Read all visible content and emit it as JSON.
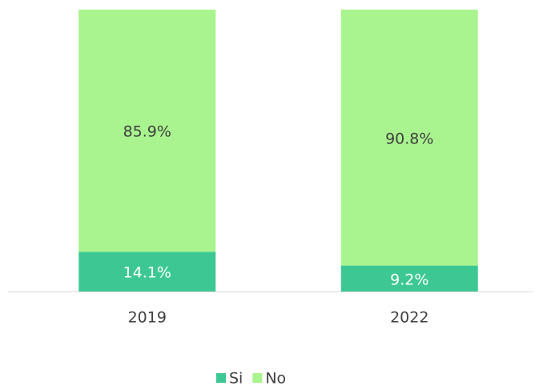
{
  "chart_data": {
    "type": "stacked_bar",
    "categories": [
      "2019",
      "2022"
    ],
    "series": [
      {
        "name": "Si",
        "color": "#3dc893",
        "values": [
          14.1,
          9.2
        ],
        "value_labels": [
          "14.1%",
          "9.2%"
        ],
        "label_color": "#ffffff"
      },
      {
        "name": "No",
        "color": "#a9f48e",
        "values": [
          85.9,
          90.8
        ],
        "value_labels": [
          "85.9%",
          "90.8%"
        ],
        "label_color": "#404040"
      }
    ],
    "ylim": [
      0,
      100
    ],
    "legend": "bottom"
  }
}
